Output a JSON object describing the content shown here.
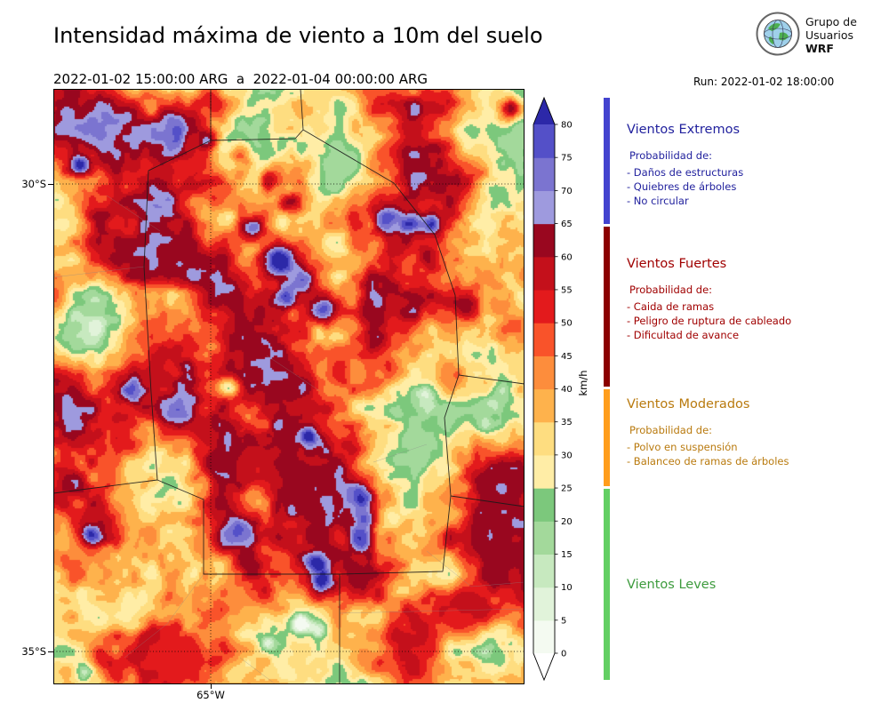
{
  "header": {
    "title": "Intensidad máxima de viento a 10m del suelo",
    "period": "2022-01-02 15:00:00 ARG  a  2022-01-04 00:00:00 ARG",
    "run_label": "Run: 2022-01-02 18:00:00",
    "logo": {
      "line1": "Grupo de",
      "line2": "Usuarios",
      "line3": "WRF"
    }
  },
  "map": {
    "lat_labels": [
      "30°S",
      "35°S"
    ],
    "lon_labels": [
      "65°W"
    ]
  },
  "colorbar": {
    "unit": "km/h",
    "levels": [
      0,
      5,
      10,
      15,
      20,
      25,
      30,
      35,
      40,
      45,
      50,
      55,
      60,
      65,
      70,
      75,
      80
    ],
    "colors": [
      "#f4faf1",
      "#e1f3da",
      "#c7e9bf",
      "#a3d99b",
      "#7cc87c",
      "#ffeda6",
      "#fedd80",
      "#feb24c",
      "#fd8d3c",
      "#f9532a",
      "#e31a1c",
      "#c4101b",
      "#99071f",
      "#9e9ade",
      "#7b74d0",
      "#5450c8",
      "#2c28a8"
    ],
    "under_color": "#ffffff"
  },
  "legend": {
    "sections": [
      {
        "name": "Vientos Extremos",
        "text_color": "#22229e",
        "bar_color": "#4343cf",
        "intro": "Probabilidad de:",
        "items": [
          "- Daños de estructuras",
          "- Quiebres de árboles",
          "- No circular"
        ]
      },
      {
        "name": "Vientos Fuertes",
        "text_color": "#a00000",
        "bar_color": "#8b0000",
        "intro": "Probabilidad de:",
        "items": [
          "- Caida de ramas",
          "- Peligro de ruptura de cableado",
          "- Dificultad de avance"
        ]
      },
      {
        "name": "Vientos Moderados",
        "text_color": "#b97a0e",
        "bar_color": "#ff9d1c",
        "intro": "Probabilidad de:",
        "items": [
          "- Polvo en suspensión",
          "- Balanceo de ramas de árboles"
        ]
      },
      {
        "name": "Vientos Leves",
        "text_color": "#3d9b3d",
        "bar_color": "#63cf63",
        "intro": "",
        "items": []
      }
    ]
  }
}
